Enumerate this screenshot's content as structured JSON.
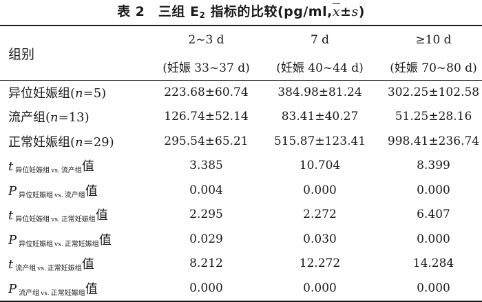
{
  "title": {
    "prefix": "表 2　三组 E",
    "sub": "2",
    "middle": " 指标的比较(pg/ml,",
    "xbar": "x",
    "pm": "±",
    "s": "s",
    "close": ")"
  },
  "header": {
    "row_label": "组别",
    "columns": [
      {
        "line1": "2~3 d",
        "line2": "(妊娠 33~37 d)"
      },
      {
        "line1": "7 d",
        "line2": "(妊娠 40~44 d)"
      },
      {
        "line1": "≥10 d",
        "line2": "(妊娠 70~80 d)"
      }
    ]
  },
  "groups": [
    {
      "name": "异位妊娠组",
      "n_label": "n",
      "n_value": "=5",
      "values": [
        "223.68±60.74",
        "384.98±81.24",
        "302.25±102.58"
      ]
    },
    {
      "name": "流产组",
      "n_label": "n",
      "n_value": "=13",
      "values": [
        "126.74±52.14",
        "83.41±40.27",
        "51.25±28.16"
      ]
    },
    {
      "name": "正常妊娠组",
      "n_label": "n",
      "n_value": "=29",
      "values": [
        "295.54±65.21",
        "515.87±123.41",
        "998.41±236.74"
      ]
    }
  ],
  "stats": [
    {
      "letter": "t",
      "a": "异位妊娠组",
      "vs": "vs.",
      "b": "流产组",
      "tail": "值",
      "values": [
        "3.385",
        "10.704",
        "8.399"
      ]
    },
    {
      "letter": "P",
      "a": "异位妊娠组",
      "vs": "vs.",
      "b": "流产组",
      "tail": "值",
      "values": [
        "0.004",
        "0.000",
        "0.000"
      ]
    },
    {
      "letter": "t",
      "a": "异位妊娠组",
      "vs": "vs.",
      "b": "正常妊娠组",
      "tail": "值",
      "values": [
        "2.295",
        "2.272",
        "6.407"
      ]
    },
    {
      "letter": "P",
      "a": "异位妊娠组",
      "vs": "vs.",
      "b": "正常妊娠组",
      "tail": "值",
      "values": [
        "0.029",
        "0.030",
        "0.000"
      ]
    },
    {
      "letter": "t",
      "a": "流产组",
      "vs": "vs.",
      "b": "正常妊娠组",
      "tail": "值",
      "values": [
        "8.212",
        "12.272",
        "14.284"
      ]
    },
    {
      "letter": "P",
      "a": "流产组",
      "vs": "vs.",
      "b": "正常妊娠组",
      "tail": "值",
      "values": [
        "0.000",
        "0.000",
        "0.000"
      ]
    }
  ]
}
